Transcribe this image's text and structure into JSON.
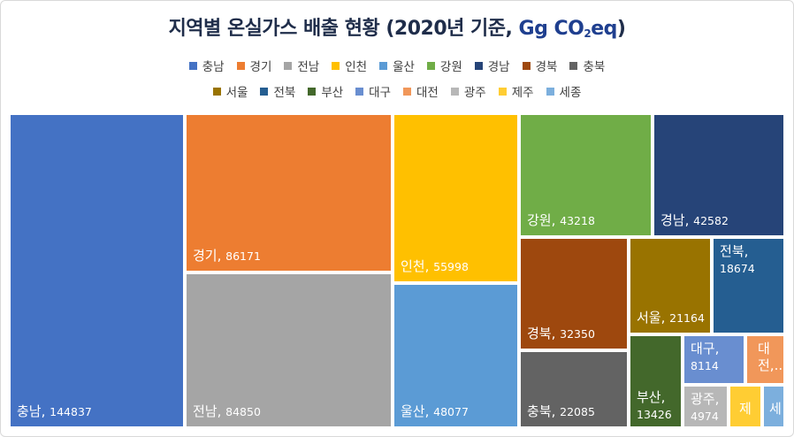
{
  "title": {
    "main": "지역별 온실가스 배출 현황 (2020년 기준, ",
    "unit_prefix": "Gg CO",
    "unit_sub": "2",
    "unit_suffix": "eq",
    "close": ")"
  },
  "chart_data": {
    "type": "treemap",
    "title": "지역별 온실가스 배출 현황 (2020년 기준, Gg CO2eq)",
    "legend_placement": "top",
    "series": [
      {
        "name": "충남",
        "value": 144837,
        "color": "#4472c4",
        "label_text": "충남, 144837"
      },
      {
        "name": "경기",
        "value": 86171,
        "color": "#ed7d31",
        "label_text": "경기, 86171"
      },
      {
        "name": "전남",
        "value": 84850,
        "color": "#a5a5a5",
        "label_text": "전남, 84850"
      },
      {
        "name": "인천",
        "value": 55998,
        "color": "#ffc000",
        "label_text": "인천, 55998"
      },
      {
        "name": "울산",
        "value": 48077,
        "color": "#5b9bd5",
        "label_text": "울산, 48077"
      },
      {
        "name": "강원",
        "value": 43218,
        "color": "#70ad47",
        "label_text": "강원, 43218"
      },
      {
        "name": "경남",
        "value": 42582,
        "color": "#264478",
        "label_text": "경남, 42582"
      },
      {
        "name": "경북",
        "value": 32350,
        "color": "#9e480e",
        "label_text": "경북, 32350"
      },
      {
        "name": "충북",
        "value": 22085,
        "color": "#636363",
        "label_text": "충북, 22085"
      },
      {
        "name": "서울",
        "value": 21164,
        "color": "#997300",
        "label_text": "서울, 21164"
      },
      {
        "name": "전북",
        "value": 18674,
        "color": "#255e91",
        "label_text": "전북, 18674"
      },
      {
        "name": "부산",
        "value": 13426,
        "color": "#43682b",
        "label_text": "부산, 13426"
      },
      {
        "name": "대구",
        "value": 8114,
        "color": "#698ed0",
        "label_text": "대구, 8114"
      },
      {
        "name": "대전",
        "value": null,
        "color": "#f1975a",
        "label_text": "대전,..."
      },
      {
        "name": "광주",
        "value": 4974,
        "color": "#b7b7b7",
        "label_text": "광주, 4974"
      },
      {
        "name": "제주",
        "value": null,
        "color": "#ffcd33",
        "label_text": "제"
      },
      {
        "name": "세종",
        "value": null,
        "color": "#7cafdd",
        "label_text": "세"
      }
    ]
  }
}
